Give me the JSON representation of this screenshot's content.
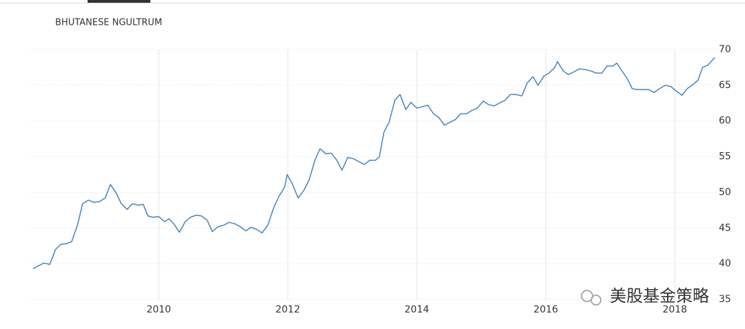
{
  "chart_data": {
    "type": "line",
    "title": "BHUTANESE NGULTRUM",
    "watermark": "美股基金策略",
    "x": [
      2008.05,
      2008.22,
      2008.31,
      2008.4,
      2008.48,
      2008.57,
      2008.65,
      2008.74,
      2008.82,
      2008.91,
      2008.99,
      2009.08,
      2009.17,
      2009.25,
      2009.34,
      2009.42,
      2009.51,
      2009.59,
      2009.68,
      2009.76,
      2009.83,
      2009.91,
      2010.0,
      2010.09,
      2010.16,
      2010.24,
      2010.32,
      2010.41,
      2010.49,
      2010.58,
      2010.66,
      2010.75,
      2010.83,
      2010.92,
      2011.01,
      2011.09,
      2011.18,
      2011.26,
      2011.35,
      2011.43,
      2011.52,
      2011.6,
      2011.69,
      2011.78,
      2011.86,
      2011.95,
      2011.99,
      2012.07,
      2012.16,
      2012.25,
      2012.33,
      2012.42,
      2012.5,
      2012.59,
      2012.67,
      2012.76,
      2012.84,
      2012.93,
      2013.02,
      2013.1,
      2013.19,
      2013.27,
      2013.36,
      2013.42,
      2013.49,
      2013.57,
      2013.66,
      2013.74,
      2013.83,
      2013.91,
      2014.0,
      2014.09,
      2014.17,
      2014.26,
      2014.34,
      2014.43,
      2014.51,
      2014.6,
      2014.68,
      2014.77,
      2014.86,
      2014.94,
      2015.03,
      2015.11,
      2015.2,
      2015.28,
      2015.37,
      2015.45,
      2015.54,
      2015.63,
      2015.71,
      2015.8,
      2015.88,
      2015.97,
      2016.05,
      2016.14,
      2016.18,
      2016.27,
      2016.35,
      2016.44,
      2016.52,
      2016.61,
      2016.7,
      2016.78,
      2016.87,
      2016.95,
      2017.04,
      2017.1,
      2017.19,
      2017.27,
      2017.34,
      2017.42,
      2017.51,
      2017.59,
      2017.68,
      2017.76,
      2017.85,
      2017.94,
      2018.02,
      2018.11,
      2018.19,
      2018.28,
      2018.36,
      2018.43,
      2018.51,
      2018.62
    ],
    "series": [
      {
        "color": "#4f8bbd",
        "values": [
          39.3,
          40.1,
          39.9,
          42.0,
          42.7,
          42.8,
          43.1,
          45.4,
          48.4,
          48.9,
          48.6,
          48.7,
          49.2,
          51.1,
          49.9,
          48.4,
          47.6,
          48.4,
          48.2,
          48.3,
          46.7,
          46.5,
          46.6,
          45.9,
          46.3,
          45.5,
          44.4,
          45.9,
          46.5,
          46.8,
          46.7,
          46.1,
          44.5,
          45.2,
          45.4,
          45.8,
          45.6,
          45.2,
          44.6,
          45.1,
          44.8,
          44.3,
          45.4,
          47.8,
          49.4,
          50.7,
          52.5,
          51.2,
          49.2,
          50.3,
          51.7,
          54.5,
          56.1,
          55.4,
          55.5,
          54.5,
          53.1,
          54.9,
          54.7,
          54.3,
          53.9,
          54.5,
          54.5,
          55.0,
          58.4,
          59.8,
          62.9,
          63.7,
          61.6,
          62.6,
          61.8,
          62.0,
          62.2,
          61.0,
          60.5,
          59.4,
          59.8,
          60.2,
          61.0,
          61.0,
          61.5,
          61.8,
          62.8,
          62.3,
          62.1,
          62.5,
          62.9,
          63.7,
          63.7,
          63.5,
          65.3,
          66.2,
          65.0,
          66.3,
          66.7,
          67.5,
          68.3,
          67.0,
          66.5,
          66.9,
          67.3,
          67.2,
          67.0,
          66.7,
          66.7,
          67.7,
          67.7,
          68.1,
          66.9,
          65.8,
          64.5,
          64.4,
          64.4,
          64.4,
          64.0,
          64.5,
          65.0,
          64.8,
          64.2,
          63.6,
          64.5,
          65.1,
          65.7,
          67.5,
          67.8,
          68.9
        ]
      }
    ],
    "xlim": [
      2008.02,
      2018.66
    ],
    "xticks": [
      2010,
      2012,
      2014,
      2016,
      2018
    ],
    "ylim": [
      35,
      70
    ],
    "yticks": [
      35,
      40,
      45,
      50,
      55,
      60,
      65,
      70
    ],
    "grid": true
  }
}
